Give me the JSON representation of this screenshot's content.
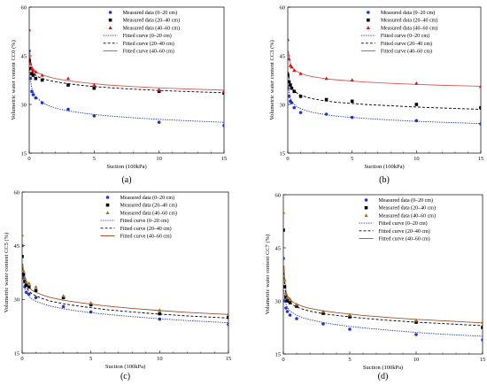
{
  "chart_data": [
    {
      "type": "scatter",
      "panel_label": "(a)",
      "xlabel": "Suction (100kPa)",
      "ylabel": "Volumetric water content CC0 (%)",
      "xlim": [
        0,
        15
      ],
      "ylim": [
        15,
        60
      ],
      "x_ticks": [
        "0",
        "5",
        "10",
        "15"
      ],
      "y_ticks": [
        "15",
        "30",
        "45",
        "60"
      ],
      "legend_position": "top-right",
      "series": [
        {
          "name": "Measured data (0–20 cm)",
          "kind": "points",
          "marker": "circle",
          "color": "#2233cc",
          "x": [
            0,
            0.1,
            0.2,
            0.3,
            0.5,
            1,
            3,
            5,
            10,
            15
          ],
          "y": [
            46.5,
            38,
            34,
            33,
            32,
            30.5,
            28.5,
            26.5,
            24.5,
            23.5
          ]
        },
        {
          "name": "Measured data (20–40 cm)",
          "kind": "points",
          "marker": "square",
          "color": "#000000",
          "x": [
            0,
            0.1,
            0.2,
            0.3,
            0.5,
            1,
            3,
            5,
            10,
            15
          ],
          "y": [
            43.5,
            41,
            39.5,
            39,
            38,
            37.5,
            36,
            35,
            34,
            33.5
          ]
        },
        {
          "name": "Measured data (40–60 cm)",
          "kind": "points",
          "marker": "triangle",
          "color": "#dd1111",
          "x": [
            0,
            0.1,
            0.2,
            0.3,
            0.5,
            1,
            3,
            5,
            10,
            15
          ],
          "y": [
            53,
            42.5,
            41,
            40.5,
            40,
            39,
            38,
            36,
            34.5,
            34
          ]
        },
        {
          "name": "Fitted curve (0–20 cm)",
          "kind": "curve",
          "dash": "1.4 1.2",
          "color": "#2233cc",
          "x": [
            0.05,
            0.1,
            0.2,
            0.3,
            0.5,
            0.75,
            1,
            1.5,
            2,
            3,
            4,
            5,
            6,
            8,
            10,
            12,
            15
          ],
          "y": [
            40,
            37.5,
            35,
            33.8,
            32.5,
            31.5,
            30.6,
            29.6,
            28.9,
            28,
            27.4,
            26.9,
            26.5,
            25.9,
            25.4,
            25,
            24.5
          ]
        },
        {
          "name": "Fitted curve (20–40 cm)",
          "kind": "curve",
          "dash": "3 2",
          "color": "#000000",
          "x": [
            0.05,
            0.1,
            0.2,
            0.3,
            0.5,
            0.75,
            1,
            1.5,
            2,
            3,
            4,
            5,
            6,
            8,
            10,
            12,
            15
          ],
          "y": [
            44.5,
            42,
            40.5,
            39.8,
            39,
            38.4,
            38,
            37.4,
            37,
            36.4,
            35.9,
            35.5,
            35.2,
            34.7,
            34.3,
            34,
            33.6
          ]
        },
        {
          "name": "Fitted curve (40–60 cm)",
          "kind": "curve",
          "dash": "",
          "color": "#e05555",
          "x": [
            0.05,
            0.1,
            0.2,
            0.3,
            0.5,
            0.75,
            1,
            1.5,
            2,
            3,
            4,
            5,
            6,
            8,
            10,
            12,
            15
          ],
          "y": [
            46,
            43.5,
            41.8,
            41,
            40.2,
            39.6,
            39.1,
            38.5,
            38,
            37.3,
            36.8,
            36.4,
            36,
            35.5,
            35.1,
            34.8,
            34.4
          ]
        }
      ]
    },
    {
      "type": "scatter",
      "panel_label": "(b)",
      "xlabel": "Suction (100kPa)",
      "ylabel": "Volumetric water content CC3 (%)",
      "xlim": [
        0,
        15
      ],
      "ylim": [
        15,
        60
      ],
      "x_ticks": [
        "0",
        "5",
        "10",
        "15"
      ],
      "y_ticks": [
        "15",
        "30",
        "45",
        "60"
      ],
      "legend_position": "top-right",
      "series": [
        {
          "name": "Measured data (0–20 cm)",
          "kind": "points",
          "marker": "circle",
          "color": "#2233cc",
          "x": [
            0,
            0.1,
            0.2,
            0.3,
            0.5,
            1,
            3,
            5,
            10,
            15
          ],
          "y": [
            35,
            32.5,
            31,
            30.5,
            29,
            27.5,
            27,
            26,
            25,
            24
          ]
        },
        {
          "name": "Measured data (20–40 cm)",
          "kind": "points",
          "marker": "square",
          "color": "#000000",
          "x": [
            0,
            0.1,
            0.2,
            0.3,
            0.5,
            1,
            3,
            5,
            10,
            15
          ],
          "y": [
            39,
            37,
            36,
            35,
            34,
            32.5,
            31.5,
            31,
            30,
            29
          ]
        },
        {
          "name": "Measured data (40–60 cm)",
          "kind": "points",
          "marker": "triangle",
          "color": "#dd1111",
          "x": [
            0,
            0.1,
            0.2,
            0.3,
            0.5,
            1,
            3,
            5,
            10,
            15
          ],
          "y": [
            50,
            44,
            42,
            41.5,
            40.5,
            39.5,
            38,
            37.5,
            36.5,
            35.5
          ]
        },
        {
          "name": "Fitted curve (0–20 cm)",
          "kind": "curve",
          "dash": "1.4 1.2",
          "color": "#2233cc",
          "x": [
            0.05,
            0.1,
            0.2,
            0.3,
            0.5,
            0.75,
            1,
            1.5,
            2,
            3,
            4,
            5,
            6,
            8,
            10,
            12,
            15
          ],
          "y": [
            36,
            34,
            32,
            31,
            30,
            29.2,
            28.7,
            28,
            27.5,
            26.8,
            26.3,
            26,
            25.7,
            25.2,
            24.8,
            24.5,
            24.1
          ]
        },
        {
          "name": "Fitted curve (20–40 cm)",
          "kind": "curve",
          "dash": "3 2",
          "color": "#000000",
          "x": [
            0.05,
            0.1,
            0.2,
            0.3,
            0.5,
            0.75,
            1,
            1.5,
            2,
            3,
            4,
            5,
            6,
            8,
            10,
            12,
            15
          ],
          "y": [
            40,
            38,
            36.2,
            35.2,
            34.2,
            33.4,
            32.9,
            32.2,
            31.7,
            31,
            30.6,
            30.3,
            30,
            29.6,
            29.2,
            28.9,
            28.5
          ]
        },
        {
          "name": "Fitted curve (40–60 cm)",
          "kind": "curve",
          "dash": "",
          "color": "#e05555",
          "x": [
            0.05,
            0.1,
            0.2,
            0.3,
            0.5,
            0.75,
            1,
            1.5,
            2,
            3,
            4,
            5,
            6,
            8,
            10,
            12,
            15
          ],
          "y": [
            46.5,
            44.5,
            42.7,
            41.8,
            40.8,
            40.1,
            39.6,
            38.9,
            38.5,
            37.9,
            37.5,
            37.2,
            36.9,
            36.5,
            36.2,
            35.9,
            35.6
          ]
        }
      ]
    },
    {
      "type": "scatter",
      "panel_label": "(c)",
      "xlabel": "Suction (100kPa)",
      "ylabel": "Volumetric water content CC5 (%)",
      "xlim": [
        0,
        15
      ],
      "ylim": [
        15,
        60
      ],
      "x_ticks": [
        "0",
        "5",
        "10",
        "15"
      ],
      "y_ticks": [
        "15",
        "30",
        "45",
        "60"
      ],
      "legend_position": "top-right",
      "series": [
        {
          "name": "Measured data (0–20 cm)",
          "kind": "points",
          "marker": "circle",
          "color": "#2233cc",
          "x": [
            0,
            0.1,
            0.2,
            0.3,
            0.5,
            1,
            3,
            5,
            10,
            15
          ],
          "y": [
            45,
            36,
            33.5,
            32,
            31.5,
            30.5,
            28,
            26.5,
            24.5,
            23
          ]
        },
        {
          "name": "Measured data (20–40 cm)",
          "kind": "points",
          "marker": "square",
          "color": "#000000",
          "x": [
            0,
            0.1,
            0.2,
            0.3,
            0.5,
            1,
            3,
            5,
            10,
            15
          ],
          "y": [
            42,
            37,
            35,
            34,
            33.5,
            32.5,
            30.5,
            28.5,
            26,
            25
          ]
        },
        {
          "name": "Measured data (40–60 cm)",
          "kind": "points",
          "marker": "triangle",
          "color": "#a07020",
          "x": [
            0,
            0.1,
            0.2,
            0.3,
            0.5,
            1,
            3,
            5,
            10,
            15
          ],
          "y": [
            48,
            38,
            36,
            35,
            34.5,
            33.5,
            31,
            29,
            27,
            26
          ]
        },
        {
          "name": "Fitted curve (0–20 cm)",
          "kind": "curve",
          "dash": "1.4 1.2",
          "color": "#2233cc",
          "x": [
            0.05,
            0.1,
            0.2,
            0.3,
            0.5,
            0.75,
            1,
            1.5,
            2,
            3,
            4,
            5,
            6,
            8,
            10,
            12,
            15
          ],
          "y": [
            38,
            35,
            32.8,
            31.8,
            30.8,
            30,
            29.5,
            28.8,
            28.2,
            27.4,
            26.8,
            26.3,
            25.9,
            25.2,
            24.6,
            24.1,
            23.5
          ]
        },
        {
          "name": "Fitted curve (20–40 cm)",
          "kind": "curve",
          "dash": "3 2",
          "color": "#000000",
          "x": [
            0.05,
            0.1,
            0.2,
            0.3,
            0.5,
            0.75,
            1,
            1.5,
            2,
            3,
            4,
            5,
            6,
            8,
            10,
            12,
            15
          ],
          "y": [
            39,
            36.5,
            34.3,
            33.3,
            32.3,
            31.5,
            31,
            30.2,
            29.6,
            28.8,
            28.2,
            27.7,
            27.2,
            26.5,
            25.9,
            25.4,
            24.8
          ]
        },
        {
          "name": "Fitted curve (40–60 cm)",
          "kind": "curve",
          "dash": "",
          "color": "#a0522d",
          "x": [
            0.05,
            0.1,
            0.2,
            0.3,
            0.5,
            0.75,
            1,
            1.5,
            2,
            3,
            4,
            5,
            6,
            8,
            10,
            12,
            15
          ],
          "y": [
            40,
            37.5,
            35.3,
            34.3,
            33.3,
            32.5,
            32,
            31.2,
            30.6,
            29.8,
            29.2,
            28.7,
            28.2,
            27.5,
            26.9,
            26.4,
            25.8
          ]
        }
      ]
    },
    {
      "type": "scatter",
      "panel_label": "(d)",
      "xlabel": "Suction (100kPa)",
      "ylabel": "Volumetric water content CC7 (%)",
      "xlim": [
        0,
        15
      ],
      "ylim": [
        15,
        60
      ],
      "x_ticks": [
        "0",
        "5",
        "10",
        "15"
      ],
      "y_ticks": [
        "15",
        "30",
        "45",
        "60"
      ],
      "legend_position": "top-right",
      "series": [
        {
          "name": "Measured data (0–20 cm)",
          "kind": "points",
          "marker": "circle",
          "color": "#2233cc",
          "x": [
            0,
            0.1,
            0.2,
            0.3,
            0.5,
            1,
            3,
            5,
            10,
            15
          ],
          "y": [
            42,
            30,
            28,
            27,
            26,
            25,
            23.5,
            22,
            20.5,
            19
          ]
        },
        {
          "name": "Measured data (20–40 cm)",
          "kind": "points",
          "marker": "square",
          "color": "#000000",
          "x": [
            0,
            0.1,
            0.2,
            0.3,
            0.5,
            1,
            3,
            5,
            10,
            15
          ],
          "y": [
            50,
            34,
            31,
            30,
            29.5,
            28.5,
            26.5,
            25.5,
            24,
            22.5
          ]
        },
        {
          "name": "Measured data (40–60 cm)",
          "kind": "points",
          "marker": "triangle",
          "color": "#a07020",
          "x": [
            0,
            0.1,
            0.2,
            0.3,
            0.5,
            1,
            3,
            5,
            10,
            15
          ],
          "y": [
            55,
            36,
            32,
            31,
            30.5,
            29,
            27,
            26,
            24.5,
            24
          ]
        },
        {
          "name": "Fitted curve (0–20 cm)",
          "kind": "curve",
          "dash": "1.4 1.2",
          "color": "#2233cc",
          "x": [
            0.05,
            0.1,
            0.2,
            0.3,
            0.5,
            0.75,
            1,
            1.5,
            2,
            3,
            4,
            5,
            6,
            8,
            10,
            12,
            15
          ],
          "y": [
            33,
            31,
            29,
            28.2,
            27.2,
            26.5,
            26,
            25.2,
            24.7,
            23.9,
            23.3,
            22.8,
            22.4,
            21.7,
            21.1,
            20.6,
            20
          ]
        },
        {
          "name": "Fitted curve (20–40 cm)",
          "kind": "curve",
          "dash": "3 2",
          "color": "#000000",
          "x": [
            0.05,
            0.1,
            0.2,
            0.3,
            0.5,
            0.75,
            1,
            1.5,
            2,
            3,
            4,
            5,
            6,
            8,
            10,
            12,
            15
          ],
          "y": [
            38,
            34.5,
            31.8,
            30.6,
            29.6,
            28.8,
            28.3,
            27.6,
            27.1,
            26.4,
            25.9,
            25.5,
            25.1,
            24.5,
            24,
            23.6,
            23
          ]
        },
        {
          "name": "Fitted curve (40–60 cm)",
          "kind": "curve",
          "dash": "",
          "color": "#a0522d",
          "x": [
            0.05,
            0.1,
            0.2,
            0.3,
            0.5,
            0.75,
            1,
            1.5,
            2,
            3,
            4,
            5,
            6,
            8,
            10,
            12,
            15
          ],
          "y": [
            40,
            36,
            32.8,
            31.5,
            30.4,
            29.6,
            29.1,
            28.4,
            27.9,
            27.2,
            26.7,
            26.3,
            25.9,
            25.3,
            24.8,
            24.4,
            23.8
          ]
        }
      ]
    }
  ]
}
